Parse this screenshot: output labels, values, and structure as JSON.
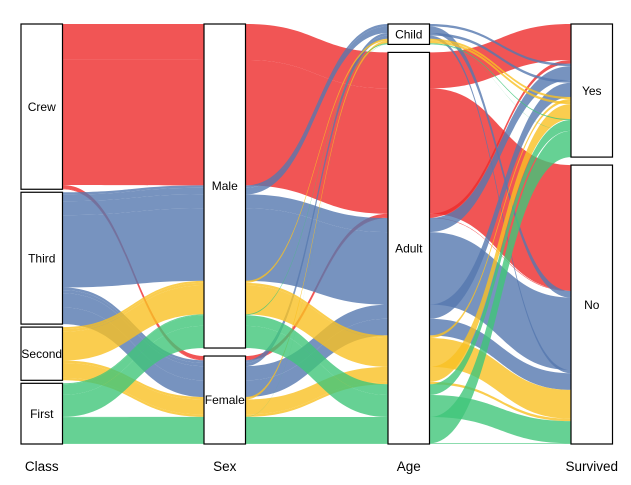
{
  "chart_data": {
    "type": "alluvial",
    "title": "",
    "background": "#FFFFFF",
    "flow_alpha": 0.8,
    "node_fill": "#FFFFFF",
    "node_border": "#000000",
    "class_colors": {
      "Crew": "#EE2B2B",
      "Third": "#5578AF",
      "Second": "#F9C023",
      "First": "#40C579"
    },
    "axes": [
      {
        "name": "Class",
        "categories": [
          "Crew",
          "Third",
          "Second",
          "First"
        ]
      },
      {
        "name": "Sex",
        "categories": [
          "Male",
          "Female"
        ]
      },
      {
        "name": "Age",
        "categories": [
          "Child",
          "Adult"
        ]
      },
      {
        "name": "Survived",
        "categories": [
          "Yes",
          "No"
        ]
      }
    ],
    "flows": [
      [
        "Crew",
        "Male",
        "Adult",
        "Yes",
        192
      ],
      [
        "Crew",
        "Male",
        "Adult",
        "No",
        670
      ],
      [
        "Crew",
        "Female",
        "Adult",
        "Yes",
        20
      ],
      [
        "Crew",
        "Female",
        "Adult",
        "No",
        3
      ],
      [
        "Third",
        "Male",
        "Child",
        "Yes",
        13
      ],
      [
        "Third",
        "Male",
        "Child",
        "No",
        35
      ],
      [
        "Third",
        "Male",
        "Adult",
        "Yes",
        75
      ],
      [
        "Third",
        "Male",
        "Adult",
        "No",
        387
      ],
      [
        "Third",
        "Female",
        "Child",
        "Yes",
        14
      ],
      [
        "Third",
        "Female",
        "Child",
        "No",
        17
      ],
      [
        "Third",
        "Female",
        "Adult",
        "Yes",
        76
      ],
      [
        "Third",
        "Female",
        "Adult",
        "No",
        89
      ],
      [
        "Second",
        "Male",
        "Child",
        "Yes",
        11
      ],
      [
        "Second",
        "Male",
        "Adult",
        "Yes",
        14
      ],
      [
        "Second",
        "Male",
        "Adult",
        "No",
        154
      ],
      [
        "Second",
        "Female",
        "Child",
        "Yes",
        13
      ],
      [
        "Second",
        "Female",
        "Adult",
        "Yes",
        80
      ],
      [
        "Second",
        "Female",
        "Adult",
        "No",
        13
      ],
      [
        "First",
        "Male",
        "Child",
        "Yes",
        5
      ],
      [
        "First",
        "Male",
        "Adult",
        "Yes",
        57
      ],
      [
        "First",
        "Male",
        "Adult",
        "No",
        118
      ],
      [
        "First",
        "Female",
        "Child",
        "Yes",
        1
      ],
      [
        "First",
        "Female",
        "Adult",
        "Yes",
        140
      ],
      [
        "First",
        "Female",
        "Adult",
        "No",
        4
      ]
    ]
  }
}
